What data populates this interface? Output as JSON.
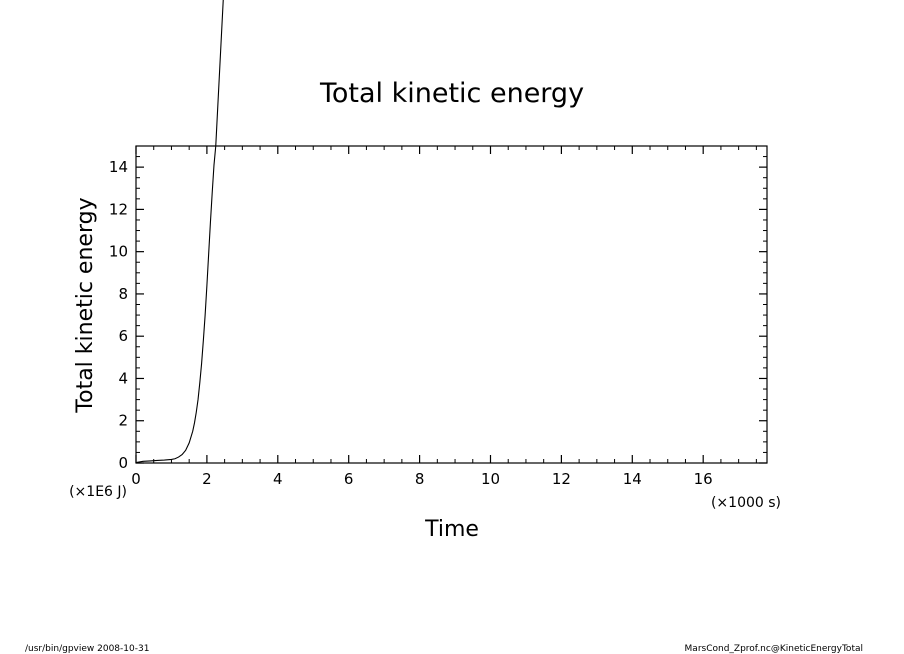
{
  "footer": {
    "left": "/usr/bin/gpview   2008-10-31",
    "right": "MarsCond_Zprof.nc@KineticEnergyTotal"
  },
  "chart_data": {
    "type": "line",
    "title": "Total kinetic energy",
    "xlabel": "Time",
    "ylabel": "Total kinetic energy",
    "x_unit_label": "(×1000 s)",
    "y_unit_label": "(×1E6 J)",
    "xlim": [
      0,
      17.8
    ],
    "ylim": [
      0,
      15
    ],
    "x_ticks": [
      0,
      2,
      4,
      6,
      8,
      10,
      12,
      14,
      16
    ],
    "y_ticks": [
      0,
      2,
      4,
      6,
      8,
      10,
      12,
      14
    ],
    "x_minor_step": 0.5,
    "y_minor_step": 0.5,
    "grid": false,
    "series": [
      {
        "color": "#000000",
        "x": [
          0,
          0.2,
          0.4,
          0.6,
          0.8,
          1.0,
          1.1,
          1.2,
          1.3,
          1.4,
          1.5,
          1.6,
          1.65,
          1.7,
          1.75,
          1.8,
          1.85,
          1.9,
          1.95,
          2.0,
          2.05,
          2.1,
          2.15,
          2.2,
          2.25
        ],
        "y": [
          0.02,
          0.08,
          0.1,
          0.12,
          0.14,
          0.17,
          0.2,
          0.28,
          0.4,
          0.6,
          0.95,
          1.5,
          1.9,
          2.4,
          3.0,
          3.8,
          4.7,
          5.8,
          7.0,
          8.4,
          9.9,
          11.4,
          12.8,
          14.1,
          15.0
        ]
      }
    ]
  }
}
